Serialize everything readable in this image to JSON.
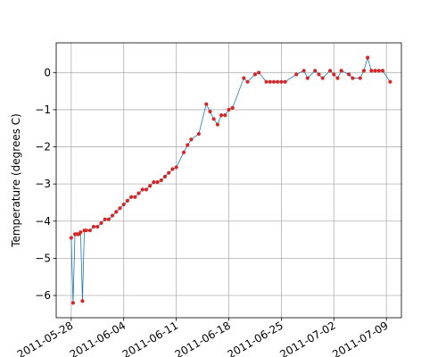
{
  "chart_data": {
    "type": "line",
    "title": "",
    "xlabel": "",
    "ylabel": "Temperature (degrees C)",
    "grid": true,
    "x_type": "date",
    "xlim": [
      "2011-05-26",
      "2011-07-11"
    ],
    "ylim": [
      -6.6,
      0.8
    ],
    "x_ticks": [
      {
        "date": "2011-05-28",
        "label": "2011-05-28"
      },
      {
        "date": "2011-06-04",
        "label": "2011-06-04"
      },
      {
        "date": "2011-06-11",
        "label": "2011-06-11"
      },
      {
        "date": "2011-06-18",
        "label": "2011-06-18"
      },
      {
        "date": "2011-06-25",
        "label": "2011-06-25"
      },
      {
        "date": "2011-07-02",
        "label": "2011-07-02"
      },
      {
        "date": "2011-07-09",
        "label": "2011-07-09"
      }
    ],
    "y_ticks": [
      0,
      -1,
      -2,
      -3,
      -4,
      -5,
      -6
    ],
    "line_color": "#1f77b4",
    "marker_color": "#d62728",
    "series": [
      {
        "points": [
          [
            "2011-05-28 00:00",
            -4.45
          ],
          [
            "2011-05-28 06:00",
            -6.2
          ],
          [
            "2011-05-28 12:00",
            -4.35
          ],
          [
            "2011-05-28 18:00",
            -4.35
          ],
          [
            "2011-05-29 00:00",
            -4.35
          ],
          [
            "2011-05-29 06:00",
            -4.3
          ],
          [
            "2011-05-29 12:00",
            -6.15
          ],
          [
            "2011-05-29 18:00",
            -4.25
          ],
          [
            "2011-05-30 00:00",
            -4.25
          ],
          [
            "2011-05-30 12:00",
            -4.25
          ],
          [
            "2011-05-31 00:00",
            -4.15
          ],
          [
            "2011-05-31 12:00",
            -4.15
          ],
          [
            "2011-06-01 00:00",
            -4.05
          ],
          [
            "2011-06-01 12:00",
            -3.95
          ],
          [
            "2011-06-02 00:00",
            -3.95
          ],
          [
            "2011-06-02 12:00",
            -3.85
          ],
          [
            "2011-06-03 00:00",
            -3.75
          ],
          [
            "2011-06-03 12:00",
            -3.65
          ],
          [
            "2011-06-04 00:00",
            -3.55
          ],
          [
            "2011-06-04 12:00",
            -3.45
          ],
          [
            "2011-06-05 00:00",
            -3.35
          ],
          [
            "2011-06-05 12:00",
            -3.35
          ],
          [
            "2011-06-06 00:00",
            -3.25
          ],
          [
            "2011-06-06 12:00",
            -3.15
          ],
          [
            "2011-06-07 00:00",
            -3.15
          ],
          [
            "2011-06-07 12:00",
            -3.05
          ],
          [
            "2011-06-08 00:00",
            -2.95
          ],
          [
            "2011-06-08 12:00",
            -2.95
          ],
          [
            "2011-06-09 00:00",
            -2.9
          ],
          [
            "2011-06-09 12:00",
            -2.8
          ],
          [
            "2011-06-10 00:00",
            -2.7
          ],
          [
            "2011-06-10 12:00",
            -2.6
          ],
          [
            "2011-06-11 00:00",
            -2.55
          ],
          [
            "2011-06-12 00:00",
            -2.15
          ],
          [
            "2011-06-12 12:00",
            -1.95
          ],
          [
            "2011-06-13 00:00",
            -1.8
          ],
          [
            "2011-06-14 00:00",
            -1.65
          ],
          [
            "2011-06-15 00:00",
            -0.85
          ],
          [
            "2011-06-15 12:00",
            -1.05
          ],
          [
            "2011-06-16 00:00",
            -1.25
          ],
          [
            "2011-06-16 12:00",
            -1.4
          ],
          [
            "2011-06-17 00:00",
            -1.15
          ],
          [
            "2011-06-17 12:00",
            -1.15
          ],
          [
            "2011-06-18 00:00",
            -1.0
          ],
          [
            "2011-06-18 12:00",
            -0.95
          ],
          [
            "2011-06-20 00:00",
            -0.15
          ],
          [
            "2011-06-20 12:00",
            -0.25
          ],
          [
            "2011-06-21 12:00",
            -0.05
          ],
          [
            "2011-06-22 00:00",
            0.0
          ],
          [
            "2011-06-23 00:00",
            -0.25
          ],
          [
            "2011-06-23 12:00",
            -0.25
          ],
          [
            "2011-06-24 00:00",
            -0.25
          ],
          [
            "2011-06-24 12:00",
            -0.25
          ],
          [
            "2011-06-25 00:00",
            -0.25
          ],
          [
            "2011-06-25 12:00",
            -0.25
          ],
          [
            "2011-06-27 00:00",
            -0.05
          ],
          [
            "2011-06-28 00:00",
            0.05
          ],
          [
            "2011-06-28 12:00",
            -0.15
          ],
          [
            "2011-06-29 12:00",
            0.05
          ],
          [
            "2011-06-30 00:00",
            -0.05
          ],
          [
            "2011-06-30 12:00",
            -0.15
          ],
          [
            "2011-07-01 12:00",
            0.05
          ],
          [
            "2011-07-02 00:00",
            -0.05
          ],
          [
            "2011-07-02 12:00",
            -0.15
          ],
          [
            "2011-07-03 00:00",
            0.05
          ],
          [
            "2011-07-04 00:00",
            -0.05
          ],
          [
            "2011-07-04 12:00",
            -0.15
          ],
          [
            "2011-07-05 12:00",
            -0.15
          ],
          [
            "2011-07-06 00:00",
            0.05
          ],
          [
            "2011-07-06 12:00",
            0.4
          ],
          [
            "2011-07-07 00:00",
            0.05
          ],
          [
            "2011-07-07 12:00",
            0.05
          ],
          [
            "2011-07-08 00:00",
            0.05
          ],
          [
            "2011-07-08 12:00",
            0.05
          ],
          [
            "2011-07-09 12:00",
            -0.25
          ]
        ]
      }
    ]
  }
}
